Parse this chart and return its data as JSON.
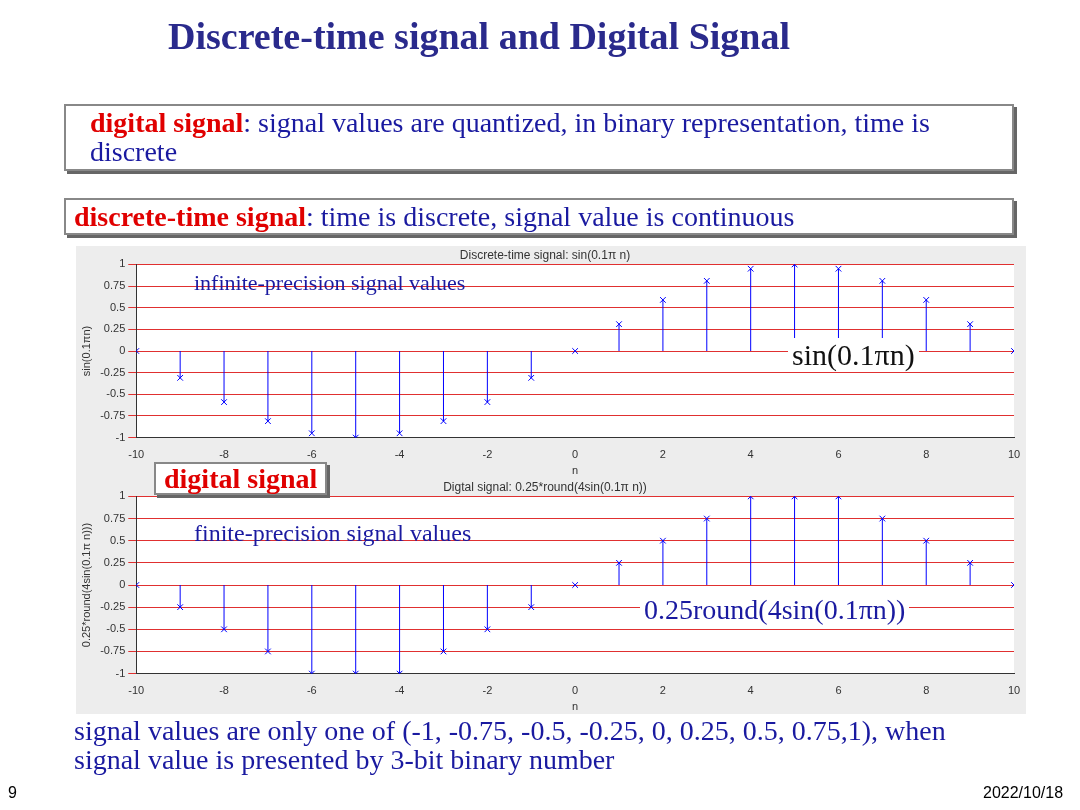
{
  "chart_data": [
    {
      "type": "lollipop",
      "title": "Discrete-time signal: sin(0.1π n)",
      "xlabel": "n",
      "ylabel": "sin(0.1πn)",
      "x": [
        -10,
        -9,
        -8,
        -7,
        -6,
        -5,
        -4,
        -3,
        -2,
        -1,
        0,
        1,
        2,
        3,
        4,
        5,
        6,
        7,
        8,
        9,
        10
      ],
      "series": [
        {
          "color": "#0000ff",
          "values": [
            0,
            -0.31,
            -0.59,
            -0.81,
            -0.95,
            -1,
            -0.95,
            -0.81,
            -0.59,
            -0.31,
            0,
            0.31,
            0.59,
            0.81,
            0.95,
            1,
            0.95,
            0.81,
            0.59,
            0.31,
            0
          ]
        }
      ],
      "xlim": [
        -10,
        10
      ],
      "xticks": [
        -10,
        -8,
        -6,
        -4,
        -2,
        0,
        2,
        4,
        6,
        8,
        10
      ],
      "ylim": [
        -1,
        1
      ],
      "yticks": [
        -1,
        -0.75,
        -0.5,
        -0.25,
        0,
        0.25,
        0.5,
        0.75,
        1
      ],
      "grid": "y",
      "legend": false,
      "marker": "cross",
      "annotations": [
        "Discrete-time signal and Digital Signal",
        "digital signal: signal values are quantized, in binary representation, time is discrete",
        "discrete-time signal: time is discrete, signal value is continuous",
        "infinite-precision signal values",
        "sin(0.1πn)"
      ]
    },
    {
      "type": "lollipop",
      "title": "Digtal signal: 0.25*round(4sin(0.1π n))",
      "xlabel": "n",
      "ylabel": "0.25*round(4sin(0.1π n)))",
      "x": [
        -10,
        -9,
        -8,
        -7,
        -6,
        -5,
        -4,
        -3,
        -2,
        -1,
        0,
        1,
        2,
        3,
        4,
        5,
        6,
        7,
        8,
        9,
        10
      ],
      "series": [
        {
          "color": "#0000ff",
          "values": [
            0,
            -0.25,
            -0.5,
            -0.75,
            -1,
            -1,
            -1,
            -0.75,
            -0.5,
            -0.25,
            0,
            0.25,
            0.5,
            0.75,
            1,
            1,
            1,
            0.75,
            0.5,
            0.25,
            0
          ]
        }
      ],
      "xlim": [
        -10,
        10
      ],
      "xticks": [
        -10,
        -8,
        -6,
        -4,
        -2,
        0,
        2,
        4,
        6,
        8,
        10
      ],
      "ylim": [
        -1,
        1
      ],
      "yticks": [
        -1,
        -0.75,
        -0.5,
        -0.25,
        0,
        0.25,
        0.5,
        0.75,
        1
      ],
      "grid": "y",
      "legend": false,
      "marker": "cross",
      "annotations": [
        "digital signal",
        "finite-precision signal values",
        "0.25round(4sin(0.1πn))",
        "signal values are only one of (-1, -0.75, -0.5, -0.25, 0, 0.25, 0.5, 0.75,1), when signal value is presented by 3-bit binary number",
        "9",
        "2022/10/18"
      ]
    }
  ]
}
